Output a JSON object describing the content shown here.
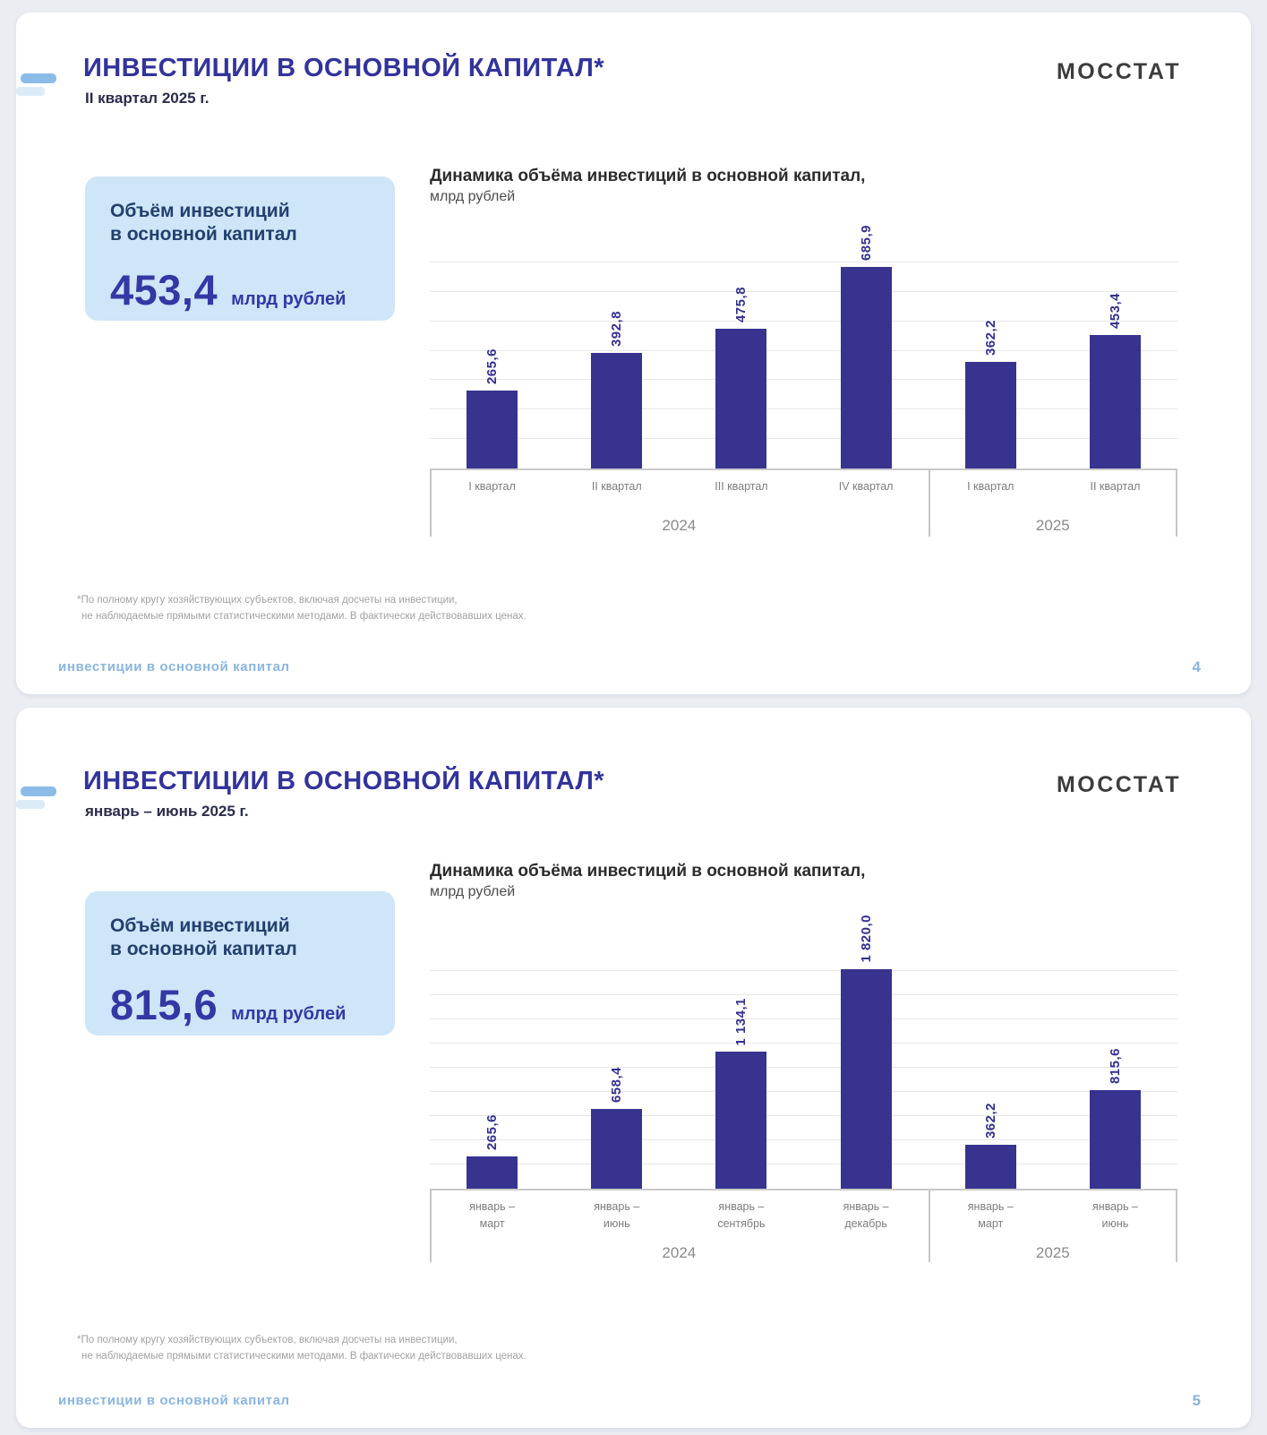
{
  "slides": [
    {
      "header": {
        "title": "ИНВЕСТИЦИИ В ОСНОВНОЙ КАПИТАЛ*",
        "subtitle": "II квартал 2025 г.",
        "logo": "МОССТАТ",
        "accent_color": "#8bbce8"
      },
      "summary_card": {
        "label": "Объём инвестиций\nв основной капитал",
        "value": "453,4",
        "unit": "млрд рублей",
        "background": "#cfe5f8"
      },
      "chart": {
        "type": "bar",
        "title": "Динамика объёма инвестиций в основной капитал,",
        "units_label": "млрд рублей",
        "bar_color": "#37338f",
        "scale_max": 700,
        "grid_step": 100,
        "bars": [
          {
            "label": "I квартал",
            "value": 265.6,
            "value_label": "265,6"
          },
          {
            "label": "II квартал",
            "value": 392.8,
            "value_label": "392,8"
          },
          {
            "label": "III квартал",
            "value": 475.8,
            "value_label": "475,8"
          },
          {
            "label": "IV квартал",
            "value": 685.9,
            "value_label": "685,9"
          },
          {
            "label": "I квартал",
            "value": 362.2,
            "value_label": "362,2"
          },
          {
            "label": "II квартал",
            "value": 453.4,
            "value_label": "453,4"
          }
        ],
        "groups": [
          {
            "label": "2024",
            "bars": 4
          },
          {
            "label": "2025",
            "bars": 2
          }
        ]
      },
      "footnote": {
        "line1": "*По полному кругу хозяйствующих субъектов, включая досчеты на инвестиции,",
        "line2": "не наблюдаемые прямыми статистическими методами. В фактически действовавших ценах."
      },
      "footer": {
        "section": "инвестиции в основной капитал",
        "page": "4"
      }
    },
    {
      "header": {
        "title": "ИНВЕСТИЦИИ В ОСНОВНОЙ КАПИТАЛ*",
        "subtitle": "январь – июнь 2025 г.",
        "logo": "МОССТАТ",
        "accent_color": "#8bbce8"
      },
      "summary_card": {
        "label": "Объём инвестиций\nв основной капитал",
        "value": "815,6",
        "unit": "млрд рублей",
        "background": "#cfe5f8"
      },
      "chart": {
        "type": "bar",
        "title": "Динамика объёма инвестиций в основной капитал,",
        "units_label": "млрд рублей",
        "bar_color": "#37338f",
        "scale_max": 1900,
        "grid_step": 200,
        "bars": [
          {
            "label": "январь –\nмарт",
            "value": 265.6,
            "value_label": "265,6"
          },
          {
            "label": "январь –\nиюнь",
            "value": 658.4,
            "value_label": "658,4"
          },
          {
            "label": "январь –\nсентябрь",
            "value": 1134.1,
            "value_label": "1 134,1"
          },
          {
            "label": "январь –\nдекабрь",
            "value": 1820.0,
            "value_label": "1 820,0"
          },
          {
            "label": "январь –\nмарт",
            "value": 362.2,
            "value_label": "362,2"
          },
          {
            "label": "январь –\nиюнь",
            "value": 815.6,
            "value_label": "815,6"
          }
        ],
        "groups": [
          {
            "label": "2024",
            "bars": 4
          },
          {
            "label": "2025",
            "bars": 2
          }
        ]
      },
      "footnote": {
        "line1": "*По полному кругу хозяйствующих субъектов, включая досчеты на инвестиции,",
        "line2": "не наблюдаемые прямыми статистическими методами. В фактически действовавших ценах."
      },
      "footer": {
        "section": "инвестиции в основной капитал",
        "page": "5"
      }
    }
  ]
}
